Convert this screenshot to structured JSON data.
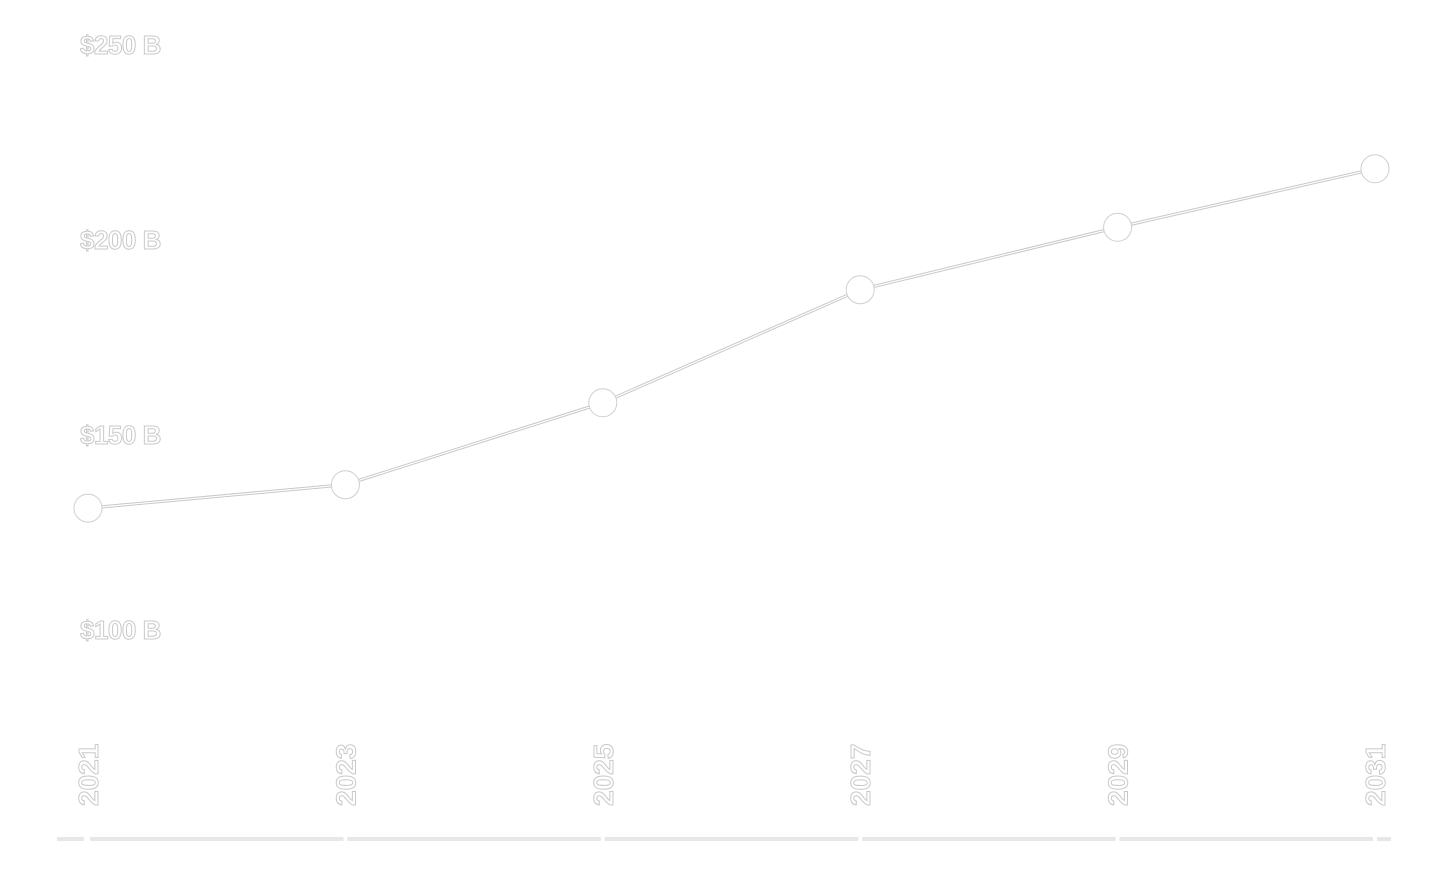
{
  "chart_data": {
    "type": "line",
    "title": "",
    "xlabel": "",
    "ylabel": "",
    "x": [
      "2021",
      "2023",
      "2025",
      "2027",
      "2029",
      "2031"
    ],
    "series": [
      {
        "values": [
          131,
          137,
          158,
          187,
          203,
          218
        ]
      }
    ],
    "y_tick_labels": [
      "$250 B",
      "$200 B",
      "$150 B",
      "$100 B"
    ],
    "y_tick_values": [
      250,
      200,
      150,
      100
    ],
    "ylim": [
      80,
      250
    ],
    "grid": false,
    "legend": "none",
    "colors": {
      "line": "#c8c8c8",
      "marker_fill": "#ffffff",
      "label": "#c9c9c9",
      "background": "#ffffff"
    }
  }
}
